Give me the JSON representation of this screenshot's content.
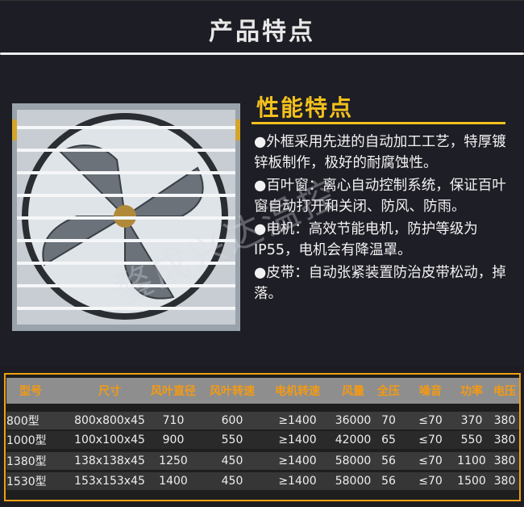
{
  "header": {
    "title": "产品特点"
  },
  "features": {
    "title": "性能特点",
    "items": [
      "●外框采用先进的自动加工工艺，特厚镀锌板制作，极好的耐腐蚀性。",
      "●百叶窗：离心自动控制系统，保证百叶窗自动打开和关闭、防风、防雨。",
      "●电机：高效节能电机，防护等级为IP55，电机会有降温罩。",
      "●皮带：自动张紧装置防治皮带松动，掉落。"
    ]
  },
  "watermark": "鍪成兴达温控",
  "colors": {
    "accent": "#f2c01c",
    "table_header_text": "#f39a14",
    "table_border": "#f0a010"
  },
  "table": {
    "headers": [
      "型号",
      "尺寸",
      "风叶直径",
      "风叶转速",
      "电机转速",
      "风量",
      "全压",
      "噪音",
      "功率",
      "电压"
    ],
    "rows": [
      [
        "800型",
        "800x800x45",
        "710",
        "600",
        "≥1400",
        "36000",
        "70",
        "≤70",
        "370",
        "380"
      ],
      [
        "1000型",
        "100x100x45",
        "900",
        "550",
        "≥1400",
        "42000",
        "65",
        "≤70",
        "550",
        "380"
      ],
      [
        "1380型",
        "138x138x45",
        "1250",
        "450",
        "≥1400",
        "58000",
        "56",
        "≤70",
        "1100",
        "380"
      ],
      [
        "1530型",
        "153x153x45",
        "1400",
        "450",
        "≥1400",
        "58000",
        "56",
        "≤70",
        "1500",
        "380"
      ]
    ]
  }
}
